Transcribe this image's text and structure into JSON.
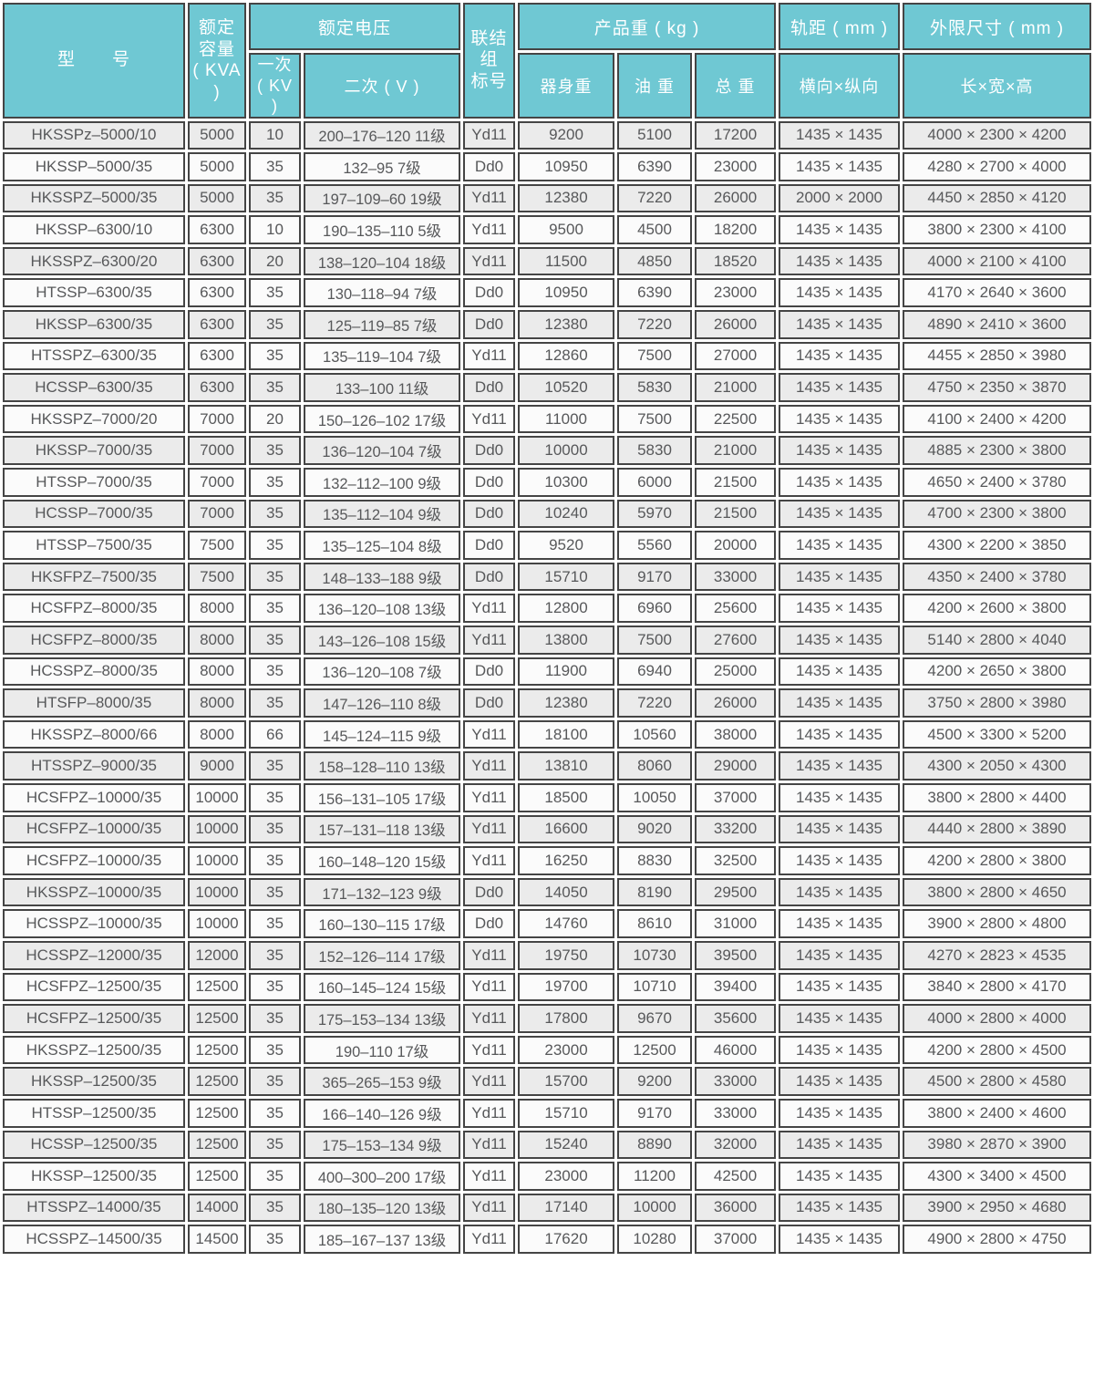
{
  "table_title": "transformer-specifications",
  "colors": {
    "header_bg": "#6fc8d3",
    "header_text": "#ffffff",
    "border": "#454545",
    "row_odd": "#ebebeb",
    "row_even": "#fbfbfb",
    "body_text": "#57585a"
  },
  "header": {
    "model": "型　　号",
    "capacity_line1": "额定容量",
    "capacity_line2": "( KVA )",
    "voltage_group": "额定电压",
    "primary_line1": "一次",
    "primary_line2": "( KV )",
    "secondary": "二次 ( V )",
    "vector_line1": "联结组",
    "vector_line2": "标号",
    "weight_group": "产品重 ( kg )",
    "weight_body": "器身重",
    "weight_oil": "油 重",
    "weight_total": "总 重",
    "gauge_group": "轨距 ( mm )",
    "gauge_sub": "横向×纵向",
    "dims_group": "外限尺寸 ( mm )",
    "dims_sub": "长×宽×高"
  },
  "rows": [
    {
      "model": "HKSSPz–5000/10",
      "kva": "5000",
      "primary_kv": "10",
      "secondary_v": "200–176–120 11级",
      "vector_group": "Yd11",
      "body_weight": "9200",
      "oil_weight": "5100",
      "total_weight": "17200",
      "gauge": "1435 × 1435",
      "dimensions": "4000 × 2300 × 4200"
    },
    {
      "model": "HKSSP–5000/35",
      "kva": "5000",
      "primary_kv": "35",
      "secondary_v": "132–95 7级",
      "vector_group": "Dd0",
      "body_weight": "10950",
      "oil_weight": "6390",
      "total_weight": "23000",
      "gauge": "1435 × 1435",
      "dimensions": "4280 × 2700 × 4000"
    },
    {
      "model": "HKSSPZ–5000/35",
      "kva": "5000",
      "primary_kv": "35",
      "secondary_v": "197–109–60 19级",
      "vector_group": "Yd11",
      "body_weight": "12380",
      "oil_weight": "7220",
      "total_weight": "26000",
      "gauge": "2000 × 2000",
      "dimensions": "4450 × 2850 × 4120"
    },
    {
      "model": "HKSSP–6300/10",
      "kva": "6300",
      "primary_kv": "10",
      "secondary_v": "190–135–110 5级",
      "vector_group": "Yd11",
      "body_weight": "9500",
      "oil_weight": "4500",
      "total_weight": "18200",
      "gauge": "1435 × 1435",
      "dimensions": "3800 × 2300 × 4100"
    },
    {
      "model": "HKSSPZ–6300/20",
      "kva": "6300",
      "primary_kv": "20",
      "secondary_v": "138–120–104 18级",
      "vector_group": "Yd11",
      "body_weight": "11500",
      "oil_weight": "4850",
      "total_weight": "18520",
      "gauge": "1435 × 1435",
      "dimensions": "4000 × 2100 × 4100"
    },
    {
      "model": "HTSSP–6300/35",
      "kva": "6300",
      "primary_kv": "35",
      "secondary_v": "130–118–94 7级",
      "vector_group": "Dd0",
      "body_weight": "10950",
      "oil_weight": "6390",
      "total_weight": "23000",
      "gauge": "1435 × 1435",
      "dimensions": "4170 × 2640 × 3600"
    },
    {
      "model": "HKSSP–6300/35",
      "kva": "6300",
      "primary_kv": "35",
      "secondary_v": "125–119–85 7级",
      "vector_group": "Dd0",
      "body_weight": "12380",
      "oil_weight": "7220",
      "total_weight": "26000",
      "gauge": "1435 × 1435",
      "dimensions": "4890 × 2410 × 3600"
    },
    {
      "model": "HTSSPZ–6300/35",
      "kva": "6300",
      "primary_kv": "35",
      "secondary_v": "135–119–104 7级",
      "vector_group": "Yd11",
      "body_weight": "12860",
      "oil_weight": "7500",
      "total_weight": "27000",
      "gauge": "1435 × 1435",
      "dimensions": "4455 × 2850 × 3980"
    },
    {
      "model": "HCSSP–6300/35",
      "kva": "6300",
      "primary_kv": "35",
      "secondary_v": "133–100 11级",
      "vector_group": "Dd0",
      "body_weight": "10520",
      "oil_weight": "5830",
      "total_weight": "21000",
      "gauge": "1435 × 1435",
      "dimensions": "4750 × 2350 × 3870"
    },
    {
      "model": "HKSSPZ–7000/20",
      "kva": "7000",
      "primary_kv": "20",
      "secondary_v": "150–126–102 17级",
      "vector_group": "Yd11",
      "body_weight": "11000",
      "oil_weight": "7500",
      "total_weight": "22500",
      "gauge": "1435 × 1435",
      "dimensions": "4100 × 2400 × 4200"
    },
    {
      "model": "HKSSP–7000/35",
      "kva": "7000",
      "primary_kv": "35",
      "secondary_v": "136–120–104 7级",
      "vector_group": "Dd0",
      "body_weight": "10000",
      "oil_weight": "5830",
      "total_weight": "21000",
      "gauge": "1435 × 1435",
      "dimensions": "4885 × 2300 × 3800"
    },
    {
      "model": "HTSSP–7000/35",
      "kva": "7000",
      "primary_kv": "35",
      "secondary_v": "132–112–100 9级",
      "vector_group": "Dd0",
      "body_weight": "10300",
      "oil_weight": "6000",
      "total_weight": "21500",
      "gauge": "1435 × 1435",
      "dimensions": "4650 × 2400 × 3780"
    },
    {
      "model": "HCSSP–7000/35",
      "kva": "7000",
      "primary_kv": "35",
      "secondary_v": "135–112–104 9级",
      "vector_group": "Dd0",
      "body_weight": "10240",
      "oil_weight": "5970",
      "total_weight": "21500",
      "gauge": "1435 × 1435",
      "dimensions": "4700 × 2300 × 3800"
    },
    {
      "model": "HTSSP–7500/35",
      "kva": "7500",
      "primary_kv": "35",
      "secondary_v": "135–125–104 8级",
      "vector_group": "Dd0",
      "body_weight": "9520",
      "oil_weight": "5560",
      "total_weight": "20000",
      "gauge": "1435 × 1435",
      "dimensions": "4300 × 2200 × 3850"
    },
    {
      "model": "HKSFPZ–7500/35",
      "kva": "7500",
      "primary_kv": "35",
      "secondary_v": "148–133–188 9级",
      "vector_group": "Dd0",
      "body_weight": "15710",
      "oil_weight": "9170",
      "total_weight": "33000",
      "gauge": "1435 × 1435",
      "dimensions": "4350 × 2400 × 3780"
    },
    {
      "model": "HCSFPZ–8000/35",
      "kva": "8000",
      "primary_kv": "35",
      "secondary_v": "136–120–108 13级",
      "vector_group": "Yd11",
      "body_weight": "12800",
      "oil_weight": "6960",
      "total_weight": "25600",
      "gauge": "1435 × 1435",
      "dimensions": "4200 × 2600 × 3800"
    },
    {
      "model": "HCSFPZ–8000/35",
      "kva": "8000",
      "primary_kv": "35",
      "secondary_v": "143–126–108 15级",
      "vector_group": "Yd11",
      "body_weight": "13800",
      "oil_weight": "7500",
      "total_weight": "27600",
      "gauge": "1435 × 1435",
      "dimensions": "5140 × 2800 × 4040"
    },
    {
      "model": "HCSSPZ–8000/35",
      "kva": "8000",
      "primary_kv": "35",
      "secondary_v": "136–120–108 7级",
      "vector_group": "Dd0",
      "body_weight": "11900",
      "oil_weight": "6940",
      "total_weight": "25000",
      "gauge": "1435 × 1435",
      "dimensions": "4200 × 2650 × 3800"
    },
    {
      "model": "HTSFP–8000/35",
      "kva": "8000",
      "primary_kv": "35",
      "secondary_v": "147–126–110 8级",
      "vector_group": "Dd0",
      "body_weight": "12380",
      "oil_weight": "7220",
      "total_weight": "26000",
      "gauge": "1435 × 1435",
      "dimensions": "3750 × 2800 × 3980"
    },
    {
      "model": "HKSSPZ–8000/66",
      "kva": "8000",
      "primary_kv": "66",
      "secondary_v": "145–124–115 9级",
      "vector_group": "Yd11",
      "body_weight": "18100",
      "oil_weight": "10560",
      "total_weight": "38000",
      "gauge": "1435 × 1435",
      "dimensions": "4500 × 3300 × 5200"
    },
    {
      "model": "HTSSPZ–9000/35",
      "kva": "9000",
      "primary_kv": "35",
      "secondary_v": "158–128–110 13级",
      "vector_group": "Yd11",
      "body_weight": "13810",
      "oil_weight": "8060",
      "total_weight": "29000",
      "gauge": "1435 × 1435",
      "dimensions": "4300 × 2050 × 4300"
    },
    {
      "model": "HCSFPZ–10000/35",
      "kva": "10000",
      "primary_kv": "35",
      "secondary_v": "156–131–105 17级",
      "vector_group": "Yd11",
      "body_weight": "18500",
      "oil_weight": "10050",
      "total_weight": "37000",
      "gauge": "1435 × 1435",
      "dimensions": "3800 × 2800 × 4400"
    },
    {
      "model": "HCSFPZ–10000/35",
      "kva": "10000",
      "primary_kv": "35",
      "secondary_v": "157–131–118 13级",
      "vector_group": "Yd11",
      "body_weight": "16600",
      "oil_weight": "9020",
      "total_weight": "33200",
      "gauge": "1435 × 1435",
      "dimensions": "4440 × 2800 × 3890"
    },
    {
      "model": "HCSFPZ–10000/35",
      "kva": "10000",
      "primary_kv": "35",
      "secondary_v": "160–148–120 15级",
      "vector_group": "Yd11",
      "body_weight": "16250",
      "oil_weight": "8830",
      "total_weight": "32500",
      "gauge": "1435 × 1435",
      "dimensions": "4200 × 2800 × 3800"
    },
    {
      "model": "HKSSPZ–10000/35",
      "kva": "10000",
      "primary_kv": "35",
      "secondary_v": "171–132–123 9级",
      "vector_group": "Dd0",
      "body_weight": "14050",
      "oil_weight": "8190",
      "total_weight": "29500",
      "gauge": "1435 × 1435",
      "dimensions": "3800 × 2800 × 4650"
    },
    {
      "model": "HCSSPZ–10000/35",
      "kva": "10000",
      "primary_kv": "35",
      "secondary_v": "160–130–115 17级",
      "vector_group": "Dd0",
      "body_weight": "14760",
      "oil_weight": "8610",
      "total_weight": "31000",
      "gauge": "1435 × 1435",
      "dimensions": "3900 × 2800 × 4800"
    },
    {
      "model": "HCSSPZ–12000/35",
      "kva": "12000",
      "primary_kv": "35",
      "secondary_v": "152–126–114 17级",
      "vector_group": "Yd11",
      "body_weight": "19750",
      "oil_weight": "10730",
      "total_weight": "39500",
      "gauge": "1435 × 1435",
      "dimensions": "4270 × 2823 × 4535"
    },
    {
      "model": "HCSFPZ–12500/35",
      "kva": "12500",
      "primary_kv": "35",
      "secondary_v": "160–145–124 15级",
      "vector_group": "Yd11",
      "body_weight": "19700",
      "oil_weight": "10710",
      "total_weight": "39400",
      "gauge": "1435 × 1435",
      "dimensions": "3840 × 2800 × 4170"
    },
    {
      "model": "HCSFPZ–12500/35",
      "kva": "12500",
      "primary_kv": "35",
      "secondary_v": "175–153–134 13级",
      "vector_group": "Yd11",
      "body_weight": "17800",
      "oil_weight": "9670",
      "total_weight": "35600",
      "gauge": "1435 × 1435",
      "dimensions": "4000 × 2800 × 4000"
    },
    {
      "model": "HKSSPZ–12500/35",
      "kva": "12500",
      "primary_kv": "35",
      "secondary_v": "190–110 17级",
      "vector_group": "Yd11",
      "body_weight": "23000",
      "oil_weight": "12500",
      "total_weight": "46000",
      "gauge": "1435 × 1435",
      "dimensions": "4200 × 2800 × 4500"
    },
    {
      "model": "HKSSP–12500/35",
      "kva": "12500",
      "primary_kv": "35",
      "secondary_v": "365–265–153 9级",
      "vector_group": "Yd11",
      "body_weight": "15700",
      "oil_weight": "9200",
      "total_weight": "33000",
      "gauge": "1435 × 1435",
      "dimensions": "4500 × 2800 × 4580"
    },
    {
      "model": "HTSSP–12500/35",
      "kva": "12500",
      "primary_kv": "35",
      "secondary_v": "166–140–126 9级",
      "vector_group": "Yd11",
      "body_weight": "15710",
      "oil_weight": "9170",
      "total_weight": "33000",
      "gauge": "1435 × 1435",
      "dimensions": "3800 × 2400 × 4600"
    },
    {
      "model": "HCSSP–12500/35",
      "kva": "12500",
      "primary_kv": "35",
      "secondary_v": "175–153–134 9级",
      "vector_group": "Yd11",
      "body_weight": "15240",
      "oil_weight": "8890",
      "total_weight": "32000",
      "gauge": "1435 × 1435",
      "dimensions": "3980 × 2870 × 3900"
    },
    {
      "model": "HKSSP–12500/35",
      "kva": "12500",
      "primary_kv": "35",
      "secondary_v": "400–300–200 17级",
      "vector_group": "Yd11",
      "body_weight": "23000",
      "oil_weight": "11200",
      "total_weight": "42500",
      "gauge": "1435 × 1435",
      "dimensions": "4300 × 3400 × 4500"
    },
    {
      "model": "HTSSPZ–14000/35",
      "kva": "14000",
      "primary_kv": "35",
      "secondary_v": "180–135–120 13级",
      "vector_group": "Yd11",
      "body_weight": "17140",
      "oil_weight": "10000",
      "total_weight": "36000",
      "gauge": "1435 × 1435",
      "dimensions": "3900 × 2950 × 4680"
    },
    {
      "model": "HCSSPZ–14500/35",
      "kva": "14500",
      "primary_kv": "35",
      "secondary_v": "185–167–137 13级",
      "vector_group": "Yd11",
      "body_weight": "17620",
      "oil_weight": "10280",
      "total_weight": "37000",
      "gauge": "1435 × 1435",
      "dimensions": "4900 × 2800 × 4750"
    }
  ]
}
